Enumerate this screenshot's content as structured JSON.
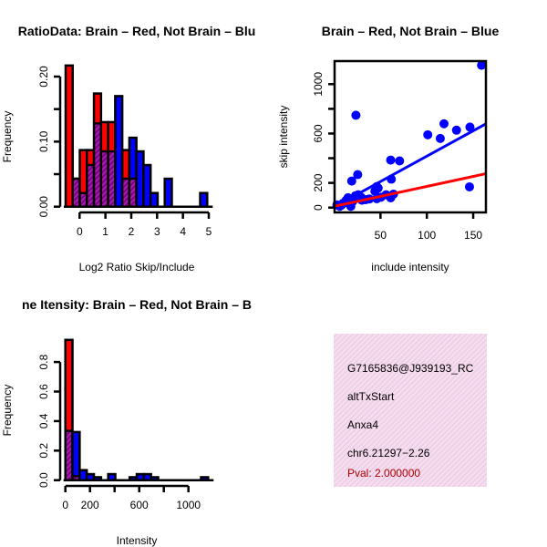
{
  "colors": {
    "red": "#ff0000",
    "blue": "#0000ff",
    "overlap": "#9a1fa6",
    "pval": "#b00000",
    "panel": "#f6d9f1"
  },
  "chart_data": [
    {
      "type": "bar",
      "title": "RatioData: Brain – Red, Not Brain – Blu",
      "xlabel": "Log2 Ratio Skip/Include",
      "ylabel": "Frequency",
      "xticks": [
        0,
        1,
        2,
        3,
        4,
        5
      ],
      "xtick_labels": [
        "0",
        "1",
        "2",
        "3",
        "4",
        "5"
      ],
      "yticks": [
        0,
        0.05,
        0.1,
        0.15,
        0.2
      ],
      "ytick_labels": [
        "0.00",
        "0.10",
        "0.20"
      ],
      "ytick_label_values": [
        0,
        0.1,
        0.2
      ],
      "bin_start": -0.54,
      "bin_width": 0.274,
      "series": [
        {
          "name": "Brain",
          "color": "red",
          "values": [
            0.217,
            0.043,
            0.087,
            0.087,
            0.174,
            0.13,
            0.13,
            0,
            0.087,
            0.043,
            0,
            0,
            0,
            0,
            0,
            0,
            0,
            0,
            0,
            0
          ]
        },
        {
          "name": "Not Brain",
          "color": "blue",
          "values": [
            0,
            0.043,
            0.021,
            0.064,
            0.128,
            0.085,
            0.085,
            0.17,
            0.043,
            0.106,
            0.085,
            0.064,
            0.021,
            0,
            0.043,
            0,
            0,
            0,
            0,
            0.021
          ]
        }
      ]
    },
    {
      "type": "scatter",
      "title": "Brain – Red, Not Brain – Blue",
      "xlabel": "include intensity",
      "ylabel": "skip intensity",
      "xticks": [
        50,
        100,
        150
      ],
      "xtick_labels": [
        "50",
        "100",
        "150"
      ],
      "yticks": [
        0,
        200,
        400,
        600,
        800,
        1000
      ],
      "ytick_labels": [
        "0",
        "200",
        "600",
        "1000"
      ],
      "ytick_label_values": [
        0,
        200,
        600,
        1000
      ],
      "xlim": [
        0,
        164
      ],
      "ylim": [
        -5,
        1200
      ],
      "points": [
        [
          159,
          1153
        ],
        [
          23.5,
          748
        ],
        [
          101,
          590
        ],
        [
          114.5,
          560
        ],
        [
          118.5,
          679
        ],
        [
          132,
          627
        ],
        [
          146.5,
          652
        ],
        [
          146,
          168
        ],
        [
          61,
          385
        ],
        [
          70.6,
          378
        ],
        [
          25.4,
          267
        ],
        [
          19,
          215
        ],
        [
          61.7,
          230
        ],
        [
          46,
          170
        ],
        [
          47.5,
          158
        ],
        [
          44,
          133
        ],
        [
          56,
          104
        ],
        [
          64,
          109
        ],
        [
          61,
          79
        ],
        [
          46,
          72
        ],
        [
          50.5,
          84
        ],
        [
          34,
          64
        ],
        [
          26,
          104
        ],
        [
          29,
          84
        ],
        [
          23,
          96
        ],
        [
          21,
          72
        ],
        [
          16,
          35
        ],
        [
          13,
          59
        ],
        [
          9.6,
          35
        ],
        [
          6,
          10
        ],
        [
          18,
          10
        ],
        [
          3,
          22
        ],
        [
          12,
          45
        ],
        [
          20,
          50
        ],
        [
          8,
          20
        ],
        [
          15,
          80
        ],
        [
          38,
          70
        ],
        [
          30,
          60
        ]
      ],
      "lines": [
        {
          "name": "Not Brain fit",
          "color": "blue",
          "from": [
            0,
            5
          ],
          "to": [
            164,
            680
          ]
        },
        {
          "name": "Brain fit",
          "color": "red",
          "from": [
            0,
            10
          ],
          "to": [
            164,
            275
          ]
        }
      ]
    },
    {
      "type": "bar",
      "title": "ne Itensity: Brain – Red, Not Brain – B",
      "xlabel": "Intensity",
      "ylabel": "Frequency",
      "xticks": [
        0,
        200,
        400,
        600,
        800,
        1000
      ],
      "xtick_labels": [
        "0",
        "200",
        "600",
        "1000"
      ],
      "xtick_label_values": [
        0,
        200,
        600,
        1000
      ],
      "yticks": [
        0,
        0.2,
        0.4,
        0.6,
        0.8
      ],
      "ytick_labels": [
        "0.0",
        "0.2",
        "0.4",
        "0.6",
        "0.8"
      ],
      "ytick_label_values": [
        0,
        0.2,
        0.4,
        0.6,
        0.8
      ],
      "bin_start": 0,
      "bin_width": 58,
      "series": [
        {
          "name": "Brain",
          "color": "red",
          "values": [
            0.95,
            0.027,
            0,
            0,
            0,
            0,
            0,
            0,
            0,
            0,
            0,
            0,
            0,
            0,
            0,
            0,
            0,
            0,
            0,
            0
          ]
        },
        {
          "name": "Not Brain",
          "color": "blue",
          "values": [
            0.334,
            0.326,
            0.068,
            0.041,
            0.02,
            0,
            0.041,
            0,
            0,
            0.02,
            0.041,
            0.041,
            0.02,
            0,
            0,
            0,
            0,
            0,
            0,
            0.02
          ]
        }
      ]
    }
  ],
  "info_panel": {
    "lines": [
      "G7165836@J939193_RC",
      "altTxStart",
      "Anxa4",
      "chr6.21297−2.26"
    ],
    "pval": "Pval: 2.000000"
  }
}
